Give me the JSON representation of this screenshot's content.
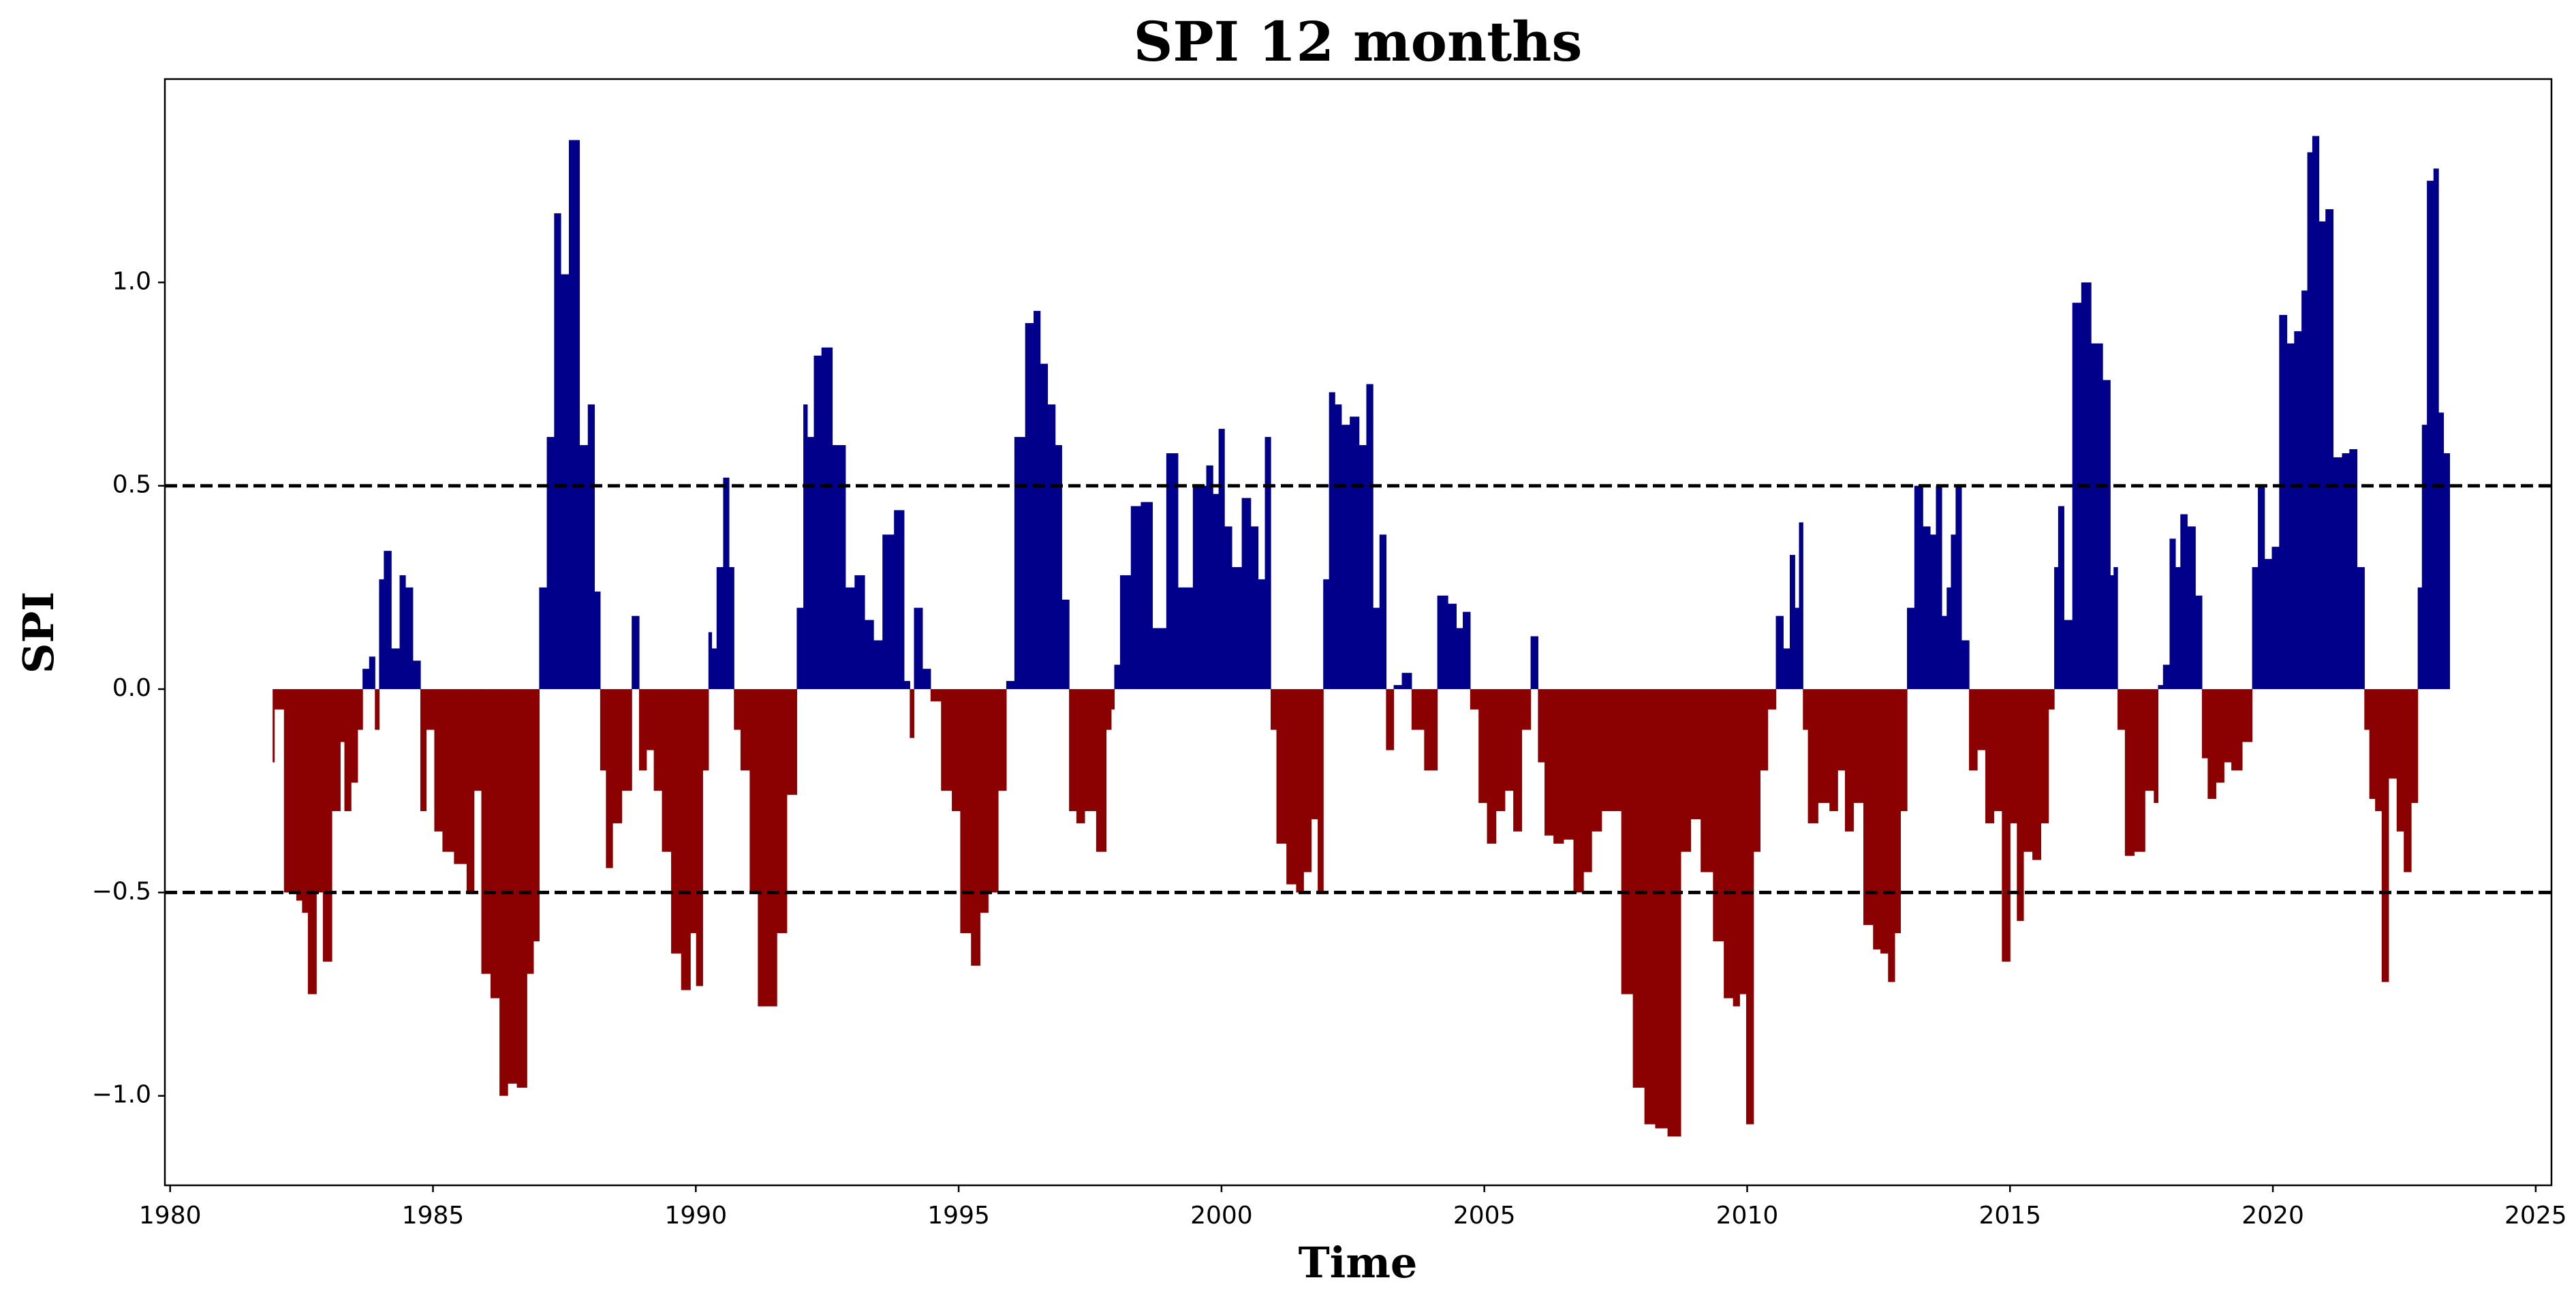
{
  "chart_data": {
    "type": "area",
    "title": "SPI 12 months",
    "x_label": "Time",
    "y_label": "SPI",
    "positive_color": "#00008b",
    "negative_color": "#8b0000",
    "reference_lines": [
      0.5,
      -0.5
    ],
    "xlim": [
      1979.9,
      2025.3
    ],
    "ylim": [
      -1.22,
      1.5
    ],
    "xticks": [
      1980,
      1985,
      1990,
      1995,
      2000,
      2005,
      2010,
      2015,
      2020,
      2025
    ],
    "yticks": [
      {
        "value": -1.0,
        "label": "−1.0"
      },
      {
        "value": -0.5,
        "label": "−0.5"
      },
      {
        "value": 0.0,
        "label": "0.0"
      },
      {
        "value": 0.5,
        "label": "0.5"
      },
      {
        "value": 1.0,
        "label": "1.0"
      }
    ],
    "x": [
      1981.95,
      1982.01,
      1982.32,
      1982.48,
      1982.54,
      1982.7,
      1982.86,
      1982.95,
      1983.2,
      1983.27,
      1983.36,
      1983.52,
      1983.61,
      1983.71,
      1983.86,
      1983.93,
      1984.02,
      1984.11,
      1984.3,
      1984.43,
      1984.52,
      1984.71,
      1984.81,
      1984.93,
      1985.12,
      1985.24,
      1985.56,
      1985.72,
      1985.84,
      1986.0,
      1986.19,
      1986.34,
      1986.5,
      1986.69,
      1986.88,
      1986.94,
      1987.1,
      1987.23,
      1987.38,
      1987.48,
      1987.69,
      1987.88,
      1988.01,
      1988.13,
      1988.23,
      1988.35,
      1988.48,
      1988.7,
      1988.86,
      1988.98,
      1989.14,
      1989.26,
      1989.45,
      1989.61,
      1989.83,
      1989.96,
      1990.05,
      1990.21,
      1990.27,
      1990.33,
      1990.46,
      1990.58,
      1990.68,
      1990.77,
      1990.93,
      1991.12,
      1991.24,
      1991.46,
      1991.62,
      1991.84,
      1992.0,
      1992.09,
      1992.15,
      1992.34,
      1992.44,
      1992.75,
      1992.94,
      1993.1,
      1993.32,
      1993.44,
      1993.66,
      1993.88,
      1994.04,
      1994.1,
      1994.2,
      1994.42,
      1994.51,
      1994.82,
      1994.92,
      1995.14,
      1995.33,
      1995.48,
      1995.64,
      1995.86,
      1995.95,
      1996.17,
      1996.36,
      1996.49,
      1996.61,
      1996.77,
      1996.9,
      1997.02,
      1997.18,
      1997.3,
      1997.49,
      1997.74,
      1997.87,
      1997.93,
      1997.99,
      1998.15,
      1998.4,
      1998.53,
      1998.84,
      1999.06,
      1999.28,
      1999.63,
      1999.79,
      1999.88,
      2000.01,
      2000.1,
      2000.29,
      2000.48,
      2000.63,
      2000.76,
      2000.89,
      2000.98,
      2001.11,
      2001.36,
      2001.48,
      2001.64,
      2001.77,
      2001.89,
      2001.98,
      2002.11,
      2002.2,
      2002.36,
      2002.52,
      2002.71,
      2002.8,
      2002.96,
      2003.05,
      2003.21,
      2003.34,
      2003.52,
      2003.71,
      2004.0,
      2004.21,
      2004.4,
      2004.53,
      2004.65,
      2004.81,
      2004.97,
      2005.13,
      2005.31,
      2005.47,
      2005.63,
      2005.79,
      2005.97,
      2006.07,
      2006.22,
      2006.41,
      2006.6,
      2006.79,
      2006.98,
      2007.1,
      2007.36,
      2007.51,
      2007.7,
      2007.95,
      2008.14,
      2008.36,
      2008.61,
      2008.86,
      2008.99,
      2009.24,
      2009.46,
      2009.65,
      2009.81,
      2009.9,
      2010.06,
      2010.18,
      2010.31,
      2010.47,
      2010.62,
      2010.75,
      2010.87,
      2010.94,
      2011.03,
      2011.09,
      2011.22,
      2011.47,
      2011.66,
      2011.78,
      2011.94,
      2012.1,
      2012.32,
      2012.47,
      2012.6,
      2012.76,
      2012.85,
      2012.98,
      2013.1,
      2013.26,
      2013.42,
      2013.54,
      2013.64,
      2013.76,
      2013.83,
      2013.92,
      2014.01,
      2014.14,
      2014.3,
      2014.45,
      2014.61,
      2014.77,
      2014.92,
      2015.08,
      2015.18,
      2015.33,
      2015.52,
      2015.65,
      2015.81,
      2015.87,
      2015.96,
      2016.09,
      2016.28,
      2016.43,
      2016.65,
      2016.87,
      2016.94,
      2017.0,
      2017.09,
      2017.28,
      2017.44,
      2017.69,
      2017.78,
      2017.85,
      2017.97,
      2018.1,
      2018.19,
      2018.29,
      2018.45,
      2018.6,
      2018.7,
      2018.82,
      2019.01,
      2019.13,
      2019.29,
      2019.54,
      2019.67,
      2019.76,
      2019.92,
      2020.04,
      2020.2,
      2020.33,
      2020.48,
      2020.61,
      2020.7,
      2020.8,
      2020.95,
      2021.05,
      2021.24,
      2021.39,
      2021.52,
      2021.68,
      2021.8,
      2021.87,
      2022.02,
      2022.12,
      2022.28,
      2022.43,
      2022.55,
      2022.71,
      2022.8,
      2022.87,
      2022.99,
      2023.12,
      2023.18,
      2023.31
    ],
    "values": [
      -0.18,
      -0.05,
      -0.5,
      -0.52,
      -0.55,
      -0.75,
      -0.5,
      -0.67,
      -0.3,
      -0.13,
      -0.3,
      -0.23,
      -0.1,
      0.05,
      0.08,
      -0.1,
      0.27,
      0.34,
      0.1,
      0.28,
      0.25,
      0.07,
      -0.3,
      -0.1,
      -0.35,
      -0.4,
      -0.43,
      -0.5,
      -0.25,
      -0.7,
      -0.76,
      -1.0,
      -0.97,
      -0.98,
      -0.7,
      -0.62,
      0.25,
      0.62,
      1.17,
      1.02,
      1.35,
      0.6,
      0.7,
      0.24,
      -0.2,
      -0.44,
      -0.33,
      -0.25,
      0.18,
      -0.2,
      -0.15,
      -0.25,
      -0.4,
      -0.65,
      -0.74,
      -0.6,
      -0.73,
      -0.2,
      0.14,
      0.1,
      0.3,
      0.52,
      0.3,
      -0.1,
      -0.2,
      -0.5,
      -0.78,
      -0.78,
      -0.6,
      -0.26,
      0.2,
      0.7,
      0.62,
      0.82,
      0.84,
      0.6,
      0.25,
      0.28,
      0.17,
      0.12,
      0.38,
      0.44,
      0.02,
      -0.12,
      0.2,
      0.05,
      -0.03,
      -0.25,
      -0.3,
      -0.6,
      -0.68,
      -0.55,
      -0.5,
      -0.25,
      0.02,
      0.62,
      0.9,
      0.93,
      0.8,
      0.7,
      0.6,
      0.22,
      -0.3,
      -0.33,
      -0.3,
      -0.4,
      -0.1,
      -0.05,
      0.06,
      0.28,
      0.45,
      0.46,
      0.15,
      0.58,
      0.25,
      0.5,
      0.55,
      0.48,
      0.64,
      0.4,
      0.3,
      0.47,
      0.4,
      0.27,
      0.62,
      -0.1,
      -0.38,
      -0.48,
      -0.5,
      -0.45,
      -0.32,
      -0.5,
      0.27,
      0.73,
      0.7,
      0.65,
      0.67,
      0.6,
      0.75,
      0.2,
      0.38,
      -0.15,
      0.01,
      0.04,
      -0.1,
      -0.2,
      0.23,
      0.21,
      0.15,
      0.19,
      -0.05,
      -0.28,
      -0.38,
      -0.3,
      -0.25,
      -0.35,
      -0.1,
      0.13,
      -0.18,
      -0.36,
      -0.38,
      -0.37,
      -0.5,
      -0.45,
      -0.35,
      -0.3,
      -0.3,
      -0.75,
      -0.98,
      -1.07,
      -1.08,
      -1.1,
      -0.4,
      -0.32,
      -0.45,
      -0.62,
      -0.76,
      -0.78,
      -0.75,
      -1.07,
      -0.4,
      -0.2,
      -0.05,
      0.18,
      0.1,
      0.33,
      0.2,
      0.41,
      -0.1,
      -0.33,
      -0.28,
      -0.3,
      -0.2,
      -0.35,
      -0.28,
      -0.58,
      -0.64,
      -0.65,
      -0.72,
      -0.6,
      -0.3,
      0.2,
      0.5,
      0.4,
      0.38,
      0.5,
      0.18,
      0.25,
      0.38,
      0.5,
      0.12,
      -0.2,
      -0.15,
      -0.33,
      -0.3,
      -0.67,
      -0.33,
      -0.57,
      -0.4,
      -0.42,
      -0.33,
      -0.05,
      0.3,
      0.45,
      0.17,
      0.95,
      1.0,
      0.85,
      0.76,
      0.28,
      0.3,
      -0.1,
      -0.41,
      -0.4,
      -0.25,
      -0.28,
      0.01,
      0.06,
      0.37,
      0.3,
      0.43,
      0.4,
      0.23,
      -0.17,
      -0.27,
      -0.23,
      -0.18,
      -0.2,
      -0.13,
      0.3,
      0.5,
      0.32,
      0.35,
      0.92,
      0.85,
      0.88,
      0.98,
      1.32,
      1.36,
      1.15,
      1.18,
      0.57,
      0.58,
      0.59,
      0.3,
      -0.1,
      -0.27,
      -0.3,
      -0.72,
      -0.22,
      -0.35,
      -0.45,
      -0.28,
      0.25,
      0.65,
      1.25,
      1.28,
      0.68,
      0.58
    ]
  }
}
